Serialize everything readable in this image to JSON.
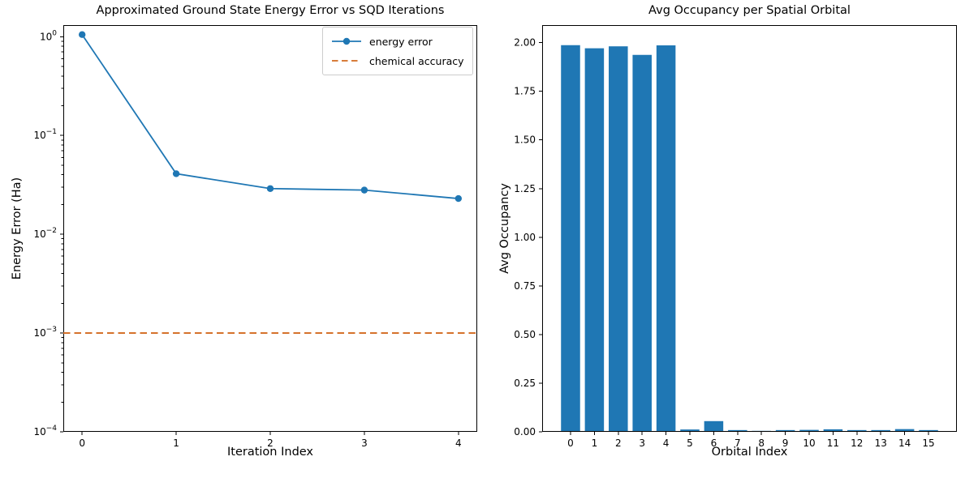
{
  "accent_colors": {
    "series_blue": "#1f77b4",
    "accuracy_orange": "#d2691e",
    "axis_black": "#000000",
    "legend_border": "#cccccc"
  },
  "chart_data": [
    {
      "type": "line",
      "title": "Approximated Ground State Energy Error vs SQD Iterations",
      "xlabel": "Iteration Index",
      "ylabel": "Energy Error (Ha)",
      "yscale": "log",
      "x": [
        0,
        1,
        2,
        3,
        4
      ],
      "series": [
        {
          "name": "energy error",
          "color": "#1f77b4",
          "marker": "circle",
          "values": [
            1.05,
            0.041,
            0.029,
            0.028,
            0.023
          ]
        }
      ],
      "hline": {
        "label": "chemical accuracy",
        "value": 0.001,
        "color": "#d2691e",
        "style": "dashed"
      },
      "xlim": [
        -0.2,
        4.2
      ],
      "ylim": [
        0.0001,
        1.31
      ],
      "xticks": [
        0,
        1,
        2,
        3,
        4
      ],
      "ytick_exponents": [
        0,
        -1,
        -2,
        -3,
        -4
      ],
      "grid": false,
      "legend_position": "upper right"
    },
    {
      "type": "bar",
      "title": "Avg Occupancy per Spatial Orbital",
      "xlabel": "Orbital Index",
      "ylabel": "Avg Occupancy",
      "categories": [
        "0",
        "1",
        "2",
        "3",
        "4",
        "5",
        "6",
        "7",
        "8",
        "9",
        "10",
        "11",
        "12",
        "13",
        "14",
        "15"
      ],
      "values": [
        1.987,
        1.971,
        1.981,
        1.937,
        1.986,
        0.012,
        0.055,
        0.009,
        0.005,
        0.009,
        0.01,
        0.013,
        0.009,
        0.009,
        0.014,
        0.009
      ],
      "bar_color": "#1f77b4",
      "xlim": [
        -1.19,
        16.19
      ],
      "ylim": [
        0,
        2.09
      ],
      "yticks": [
        0,
        0.25,
        0.5,
        0.75,
        1.0,
        1.25,
        1.5,
        1.75,
        2.0
      ],
      "grid": false
    }
  ]
}
